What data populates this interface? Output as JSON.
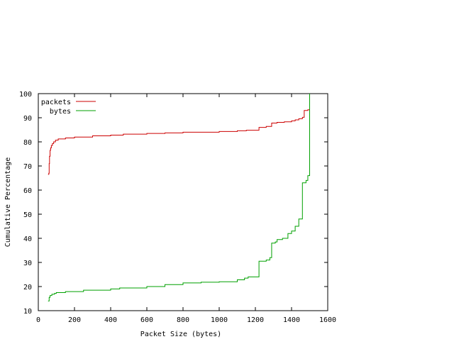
{
  "chart_data": {
    "type": "line",
    "title": "",
    "xlabel": "Packet Size (bytes)",
    "ylabel": "Cumulative Percentage",
    "xlim": [
      0,
      1600
    ],
    "ylim": [
      10,
      100
    ],
    "x_ticks": [
      0,
      200,
      400,
      600,
      800,
      1000,
      1200,
      1400,
      1600
    ],
    "y_ticks": [
      10,
      20,
      30,
      40,
      50,
      60,
      70,
      80,
      90,
      100
    ],
    "grid": false,
    "legend_position": "top-left",
    "series": [
      {
        "name": "packets",
        "color": "#cc0000",
        "step": true,
        "points": [
          [
            54,
            66.5
          ],
          [
            58,
            67
          ],
          [
            60,
            71
          ],
          [
            62,
            74
          ],
          [
            65,
            76.5
          ],
          [
            68,
            77.5
          ],
          [
            72,
            78.5
          ],
          [
            78,
            79.3
          ],
          [
            85,
            80
          ],
          [
            95,
            80.7
          ],
          [
            110,
            81.2
          ],
          [
            150,
            81.6
          ],
          [
            200,
            82
          ],
          [
            300,
            82.5
          ],
          [
            400,
            82.8
          ],
          [
            470,
            83.2
          ],
          [
            600,
            83.5
          ],
          [
            700,
            83.7
          ],
          [
            800,
            84
          ],
          [
            1000,
            84.3
          ],
          [
            1100,
            84.6
          ],
          [
            1150,
            84.8
          ],
          [
            1220,
            86
          ],
          [
            1260,
            86.4
          ],
          [
            1290,
            87.8
          ],
          [
            1320,
            88.1
          ],
          [
            1360,
            88.3
          ],
          [
            1400,
            88.7
          ],
          [
            1420,
            89.1
          ],
          [
            1440,
            89.6
          ],
          [
            1460,
            90.2
          ],
          [
            1470,
            93
          ],
          [
            1490,
            93.3
          ],
          [
            1500,
            93.6
          ]
        ]
      },
      {
        "name": "bytes",
        "color": "#00a000",
        "step": true,
        "points": [
          [
            54,
            14
          ],
          [
            60,
            15.5
          ],
          [
            65,
            16.3
          ],
          [
            75,
            16.8
          ],
          [
            90,
            17.2
          ],
          [
            100,
            17.5
          ],
          [
            150,
            17.9
          ],
          [
            250,
            18.5
          ],
          [
            400,
            19
          ],
          [
            450,
            19.4
          ],
          [
            600,
            20
          ],
          [
            700,
            20.8
          ],
          [
            800,
            21.5
          ],
          [
            900,
            21.8
          ],
          [
            1000,
            22
          ],
          [
            1100,
            22.8
          ],
          [
            1140,
            23.5
          ],
          [
            1160,
            24
          ],
          [
            1220,
            30.5
          ],
          [
            1260,
            31
          ],
          [
            1280,
            32
          ],
          [
            1290,
            38
          ],
          [
            1310,
            38.5
          ],
          [
            1320,
            39.5
          ],
          [
            1350,
            40
          ],
          [
            1380,
            42
          ],
          [
            1400,
            43
          ],
          [
            1420,
            45
          ],
          [
            1440,
            48
          ],
          [
            1460,
            63
          ],
          [
            1480,
            64
          ],
          [
            1490,
            66
          ],
          [
            1500,
            100
          ]
        ]
      }
    ]
  }
}
